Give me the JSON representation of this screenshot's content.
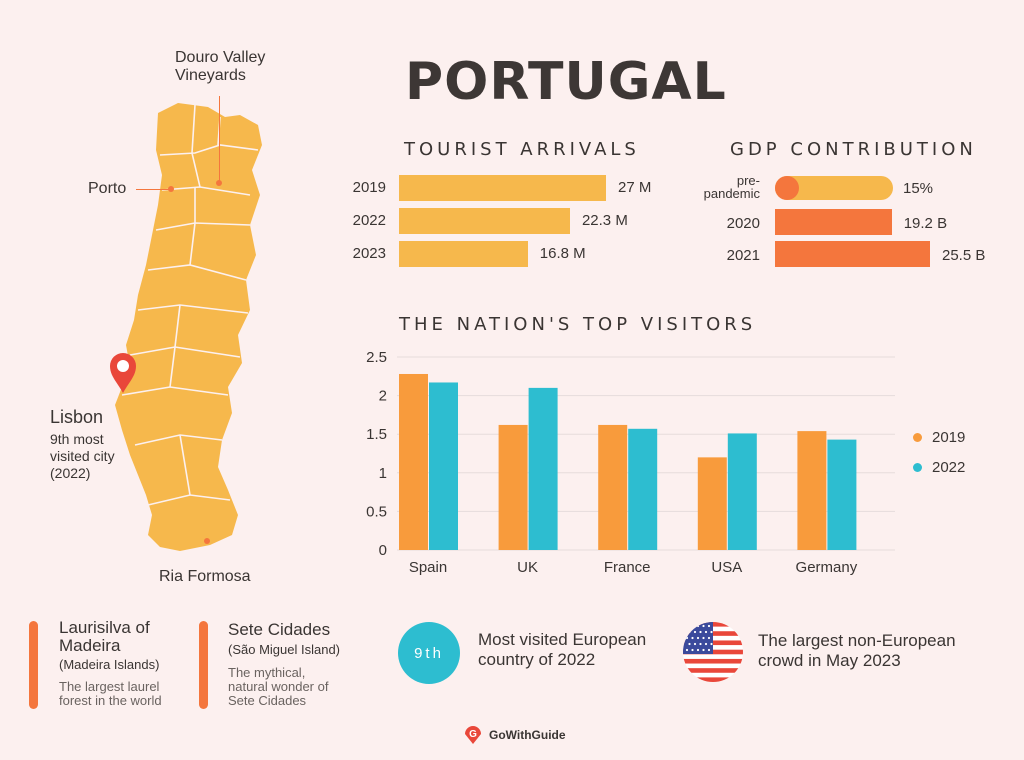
{
  "title": "PORTUGAL",
  "map": {
    "labels": {
      "douro": "Douro Valley\nVineyards",
      "porto": "Porto",
      "lisbon": "Lisbon",
      "lisbon_note": "9th most\nvisited city\n(2022)",
      "ria": "Ria Formosa"
    },
    "colors": {
      "land": "#f6b84c",
      "border": "#fcf0ef",
      "pin": "#e9473a"
    }
  },
  "arrivals": {
    "title": "TOURIST ARRIVALS",
    "rows": [
      {
        "year": "2019",
        "value": 27,
        "label": "27 M"
      },
      {
        "year": "2022",
        "value": 22.3,
        "label": "22.3 M"
      },
      {
        "year": "2023",
        "value": 16.8,
        "label": "16.8 M"
      }
    ],
    "color": "#f6b84c"
  },
  "gdp": {
    "title": "GDP CONTRIBUTION",
    "pre_label_1": "pre-",
    "pre_label_2": "pandemic",
    "pre_value": "15%",
    "pre_fraction": 0.15,
    "rows": [
      {
        "year": "2020",
        "value": 19.2,
        "label": "19.2 B"
      },
      {
        "year": "2021",
        "value": 25.5,
        "label": "25.5 B"
      }
    ],
    "color": "#f4763d"
  },
  "chart_data": {
    "type": "bar",
    "title": "THE NATION'S TOP VISITORS",
    "categories": [
      "Spain",
      "UK",
      "France",
      "USA",
      "Germany"
    ],
    "series": [
      {
        "name": "2019",
        "values": [
          2.28,
          1.62,
          1.62,
          1.2,
          1.54
        ],
        "color": "#f89b3c"
      },
      {
        "name": "2022",
        "values": [
          2.17,
          2.1,
          1.57,
          1.51,
          1.43
        ],
        "color": "#2dbdd0"
      }
    ],
    "ylim": [
      0,
      2.5
    ],
    "yticks": [
      "0",
      "0.5",
      "1",
      "1.5",
      "2",
      "2.5"
    ],
    "grid": true,
    "legend": "right"
  },
  "highlights": [
    {
      "title": "Laurisilva of\nMadeira",
      "subtitle": "(Madeira Islands)",
      "desc": "The largest laurel\nforest in the world"
    },
    {
      "title": "Sete Cidades",
      "subtitle": "(São Miguel Island)",
      "desc": "The mythical,\nnatural wonder of\nSete Cidades"
    }
  ],
  "stats": [
    {
      "badge": "9th",
      "text": "Most visited European\ncountry of 2022"
    },
    {
      "text": "The largest non-European\ncrowd in May 2023",
      "icon": "us-flag-icon"
    }
  ],
  "brand": "GoWithGuide"
}
